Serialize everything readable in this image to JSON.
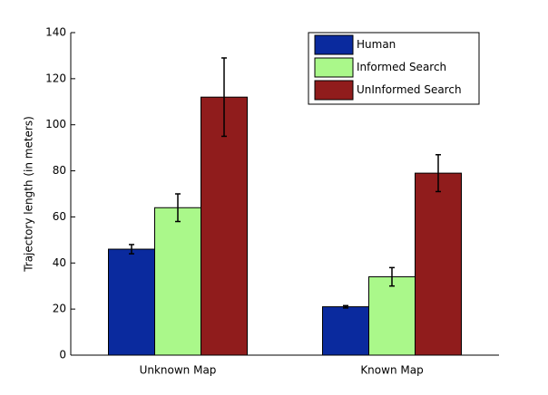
{
  "chart_data": {
    "type": "bar",
    "ylabel": "Trajectory length (in meters)",
    "categories": [
      "Unknown Map",
      "Known Map"
    ],
    "series": [
      {
        "name": "Human",
        "color": "#0a2a9e",
        "values": [
          46,
          21
        ],
        "errors": [
          2,
          0.5
        ]
      },
      {
        "name": "Informed Search",
        "color": "#aaf88a",
        "values": [
          64,
          34
        ],
        "errors": [
          6,
          4
        ]
      },
      {
        "name": "UnInformed Search",
        "color": "#901c1c",
        "values": [
          112,
          79
        ],
        "errors": [
          17,
          8
        ]
      }
    ],
    "ylim": [
      0,
      140
    ],
    "yticks": [
      0,
      20,
      40,
      60,
      80,
      100,
      120,
      140
    ],
    "legend": "upper right"
  }
}
